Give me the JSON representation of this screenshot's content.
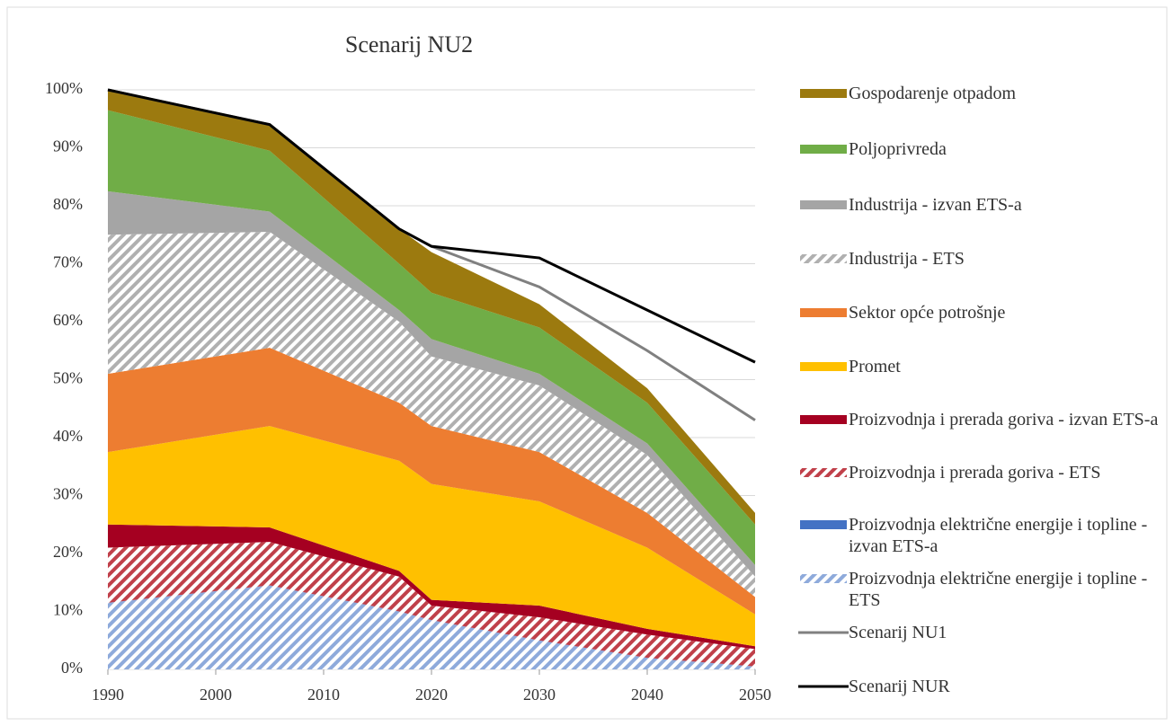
{
  "chart_data": {
    "type": "stacked_area",
    "title": "Scenarij NU2",
    "x": [
      1990,
      2005,
      2017,
      2020,
      2030,
      2040,
      2050
    ],
    "xlim": [
      1990,
      2050
    ],
    "xticks": [
      1990,
      2000,
      2010,
      2020,
      2030,
      2040,
      2050
    ],
    "ylim": [
      0,
      100
    ],
    "yticks": [
      {
        "value": 0,
        "label": "0%"
      },
      {
        "value": 10,
        "label": "10%"
      },
      {
        "value": 20,
        "label": "20%"
      },
      {
        "value": 30,
        "label": "30%"
      },
      {
        "value": 40,
        "label": "40%"
      },
      {
        "value": 50,
        "label": "50%"
      },
      {
        "value": 60,
        "label": "60%"
      },
      {
        "value": 70,
        "label": "70%"
      },
      {
        "value": 80,
        "label": "80%"
      },
      {
        "value": 90,
        "label": "90%"
      },
      {
        "value": 100,
        "label": "100%"
      }
    ],
    "grid": true,
    "series": [
      {
        "name": "Proizvodnja električne energije i topline - ETS",
        "color": "#8eaadb",
        "hatch": true,
        "values": [
          11.5,
          14.5,
          10,
          8.5,
          5,
          2,
          0.5
        ]
      },
      {
        "name": "Proizvodnja električne energije i topline - izvan ETS-a",
        "color": "#4472c4",
        "hatch": false,
        "values": [
          0,
          0,
          0,
          0,
          0,
          0,
          0
        ]
      },
      {
        "name": "Proizvodnja i prerada goriva - ETS",
        "color": "#c0404a",
        "hatch": true,
        "values": [
          9.5,
          7.5,
          6,
          2.5,
          4,
          4,
          3
        ]
      },
      {
        "name": "Proizvodnja i prerada goriva - izvan ETS-a",
        "color": "#a50021",
        "hatch": false,
        "values": [
          4,
          2.5,
          1,
          1,
          2,
          1,
          0.5
        ]
      },
      {
        "name": "Promet",
        "color": "#ffc000",
        "hatch": false,
        "values": [
          12.5,
          17.5,
          19,
          20,
          18,
          14,
          5.5
        ]
      },
      {
        "name": "Sektor opće potrošnje",
        "color": "#ed7d31",
        "hatch": false,
        "values": [
          13.5,
          13.5,
          10,
          10,
          8.5,
          6,
          3
        ]
      },
      {
        "name": "Industrija - ETS",
        "color": "#b0b0b0",
        "hatch": true,
        "values": [
          24,
          20,
          14,
          12,
          11.5,
          10,
          3.5
        ]
      },
      {
        "name": "Industrija - izvan ETS-a",
        "color": "#a5a5a5",
        "hatch": false,
        "values": [
          7.5,
          3.5,
          2,
          3,
          2,
          2,
          2
        ]
      },
      {
        "name": "Poljoprivreda",
        "color": "#70ad47",
        "hatch": false,
        "values": [
          14,
          10.5,
          8,
          8,
          8,
          7,
          7
        ]
      },
      {
        "name": "Gospodarenje otpadom",
        "color": "#9c7a0f",
        "hatch": false,
        "values": [
          3.5,
          4.5,
          6,
          7,
          4,
          2.5,
          2
        ]
      }
    ],
    "lines": [
      {
        "name": "Scenarij NU1",
        "color": "#808080",
        "values": [
          100,
          94,
          76,
          73,
          66,
          55,
          43
        ]
      },
      {
        "name": "Scenarij NUR",
        "color": "#000000",
        "values": [
          100,
          94,
          76,
          73,
          71,
          62,
          53
        ]
      }
    ]
  }
}
